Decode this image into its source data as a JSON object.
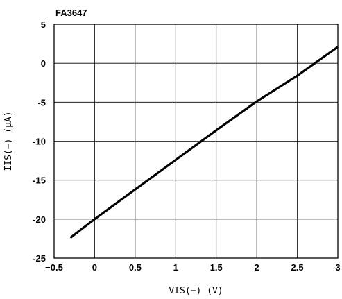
{
  "chart_data": {
    "type": "line",
    "title": "FA3647",
    "xlabel": "VIS(−) (V)",
    "ylabel": "IIS(−) (μA)",
    "xlim": [
      -0.5,
      3
    ],
    "ylim": [
      -25,
      5
    ],
    "xticks": [
      -0.5,
      0,
      0.5,
      1,
      1.5,
      2,
      2.5,
      3
    ],
    "yticks": [
      5,
      0,
      -5,
      -10,
      -15,
      -20,
      -25
    ],
    "xtick_labels": [
      "−0.5",
      "0",
      "0.5",
      "1",
      "1.5",
      "2",
      "2.5",
      "3"
    ],
    "ytick_labels": [
      "5",
      "0",
      "-5",
      "-10",
      "-15",
      "-20",
      "-25"
    ],
    "grid": true,
    "series": [
      {
        "x": [
          -0.3,
          0,
          0.5,
          1,
          1.5,
          2,
          2.5,
          3
        ],
        "y": [
          -22.4,
          -20.0,
          -16.2,
          -12.4,
          -8.6,
          -4.9,
          -1.6,
          2.1
        ]
      }
    ]
  }
}
